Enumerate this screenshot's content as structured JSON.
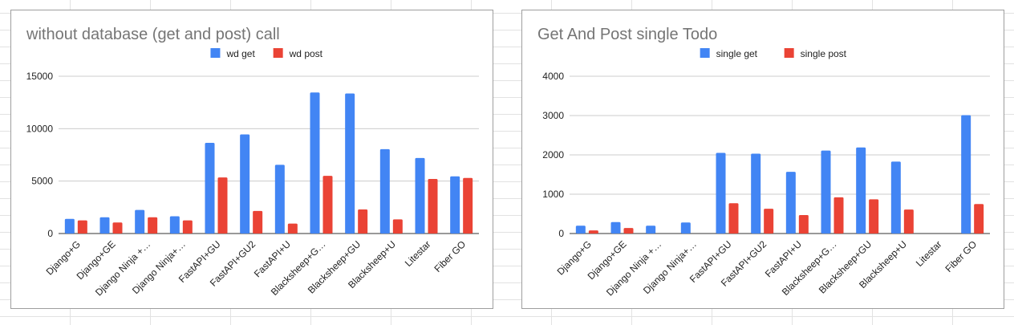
{
  "chart_data": [
    {
      "type": "bar",
      "title": "without database (get and post) call",
      "xlabel": "",
      "ylabel": "",
      "ylim": [
        0,
        15000
      ],
      "yticks": [
        "0",
        "5000",
        "10000",
        "15000"
      ],
      "grid": true,
      "legend": "top",
      "categories": [
        "Django+G",
        "Django+GE",
        "Django Ninja +…",
        "Django Ninja+…",
        "FastAPI+GU",
        "FastAPI+GU2",
        "FastAPI+U",
        "Blacksheep+G…",
        "Blacksheep+GU",
        "Blacksheep+U",
        "Litestar",
        "Fiber GO"
      ],
      "series": [
        {
          "name": "wd get",
          "color": "#4285f4",
          "values": [
            1400,
            1550,
            2250,
            1650,
            8650,
            9450,
            6550,
            13450,
            13350,
            8050,
            7200,
            5450
          ]
        },
        {
          "name": "wd post",
          "color": "#ea4335",
          "values": [
            1250,
            1050,
            1550,
            1250,
            5350,
            2150,
            950,
            5500,
            2300,
            1350,
            5200,
            5300
          ]
        }
      ]
    },
    {
      "type": "bar",
      "title": "Get And Post single Todo",
      "xlabel": "",
      "ylabel": "",
      "ylim": [
        0,
        4000
      ],
      "yticks": [
        "0",
        "1000",
        "2000",
        "3000",
        "4000"
      ],
      "grid": true,
      "legend": "top",
      "categories": [
        "Django+G",
        "Django+GE",
        "Django Ninja +…",
        "Django Ninja+…",
        "FastAPI+GU",
        "FastAPI+GU2",
        "FastAPI+U",
        "Blacksheep+G…",
        "Blacksheep+GU",
        "Blacksheep+U",
        "Litestar",
        "Fiber GO"
      ],
      "series": [
        {
          "name": "single get",
          "color": "#4285f4",
          "values": [
            200,
            290,
            200,
            280,
            2050,
            2030,
            1570,
            2110,
            2190,
            1830,
            0,
            3010
          ]
        },
        {
          "name": "single post",
          "color": "#ea4335",
          "values": [
            80,
            140,
            0,
            0,
            770,
            630,
            470,
            920,
            870,
            610,
            0,
            750
          ]
        }
      ]
    }
  ]
}
